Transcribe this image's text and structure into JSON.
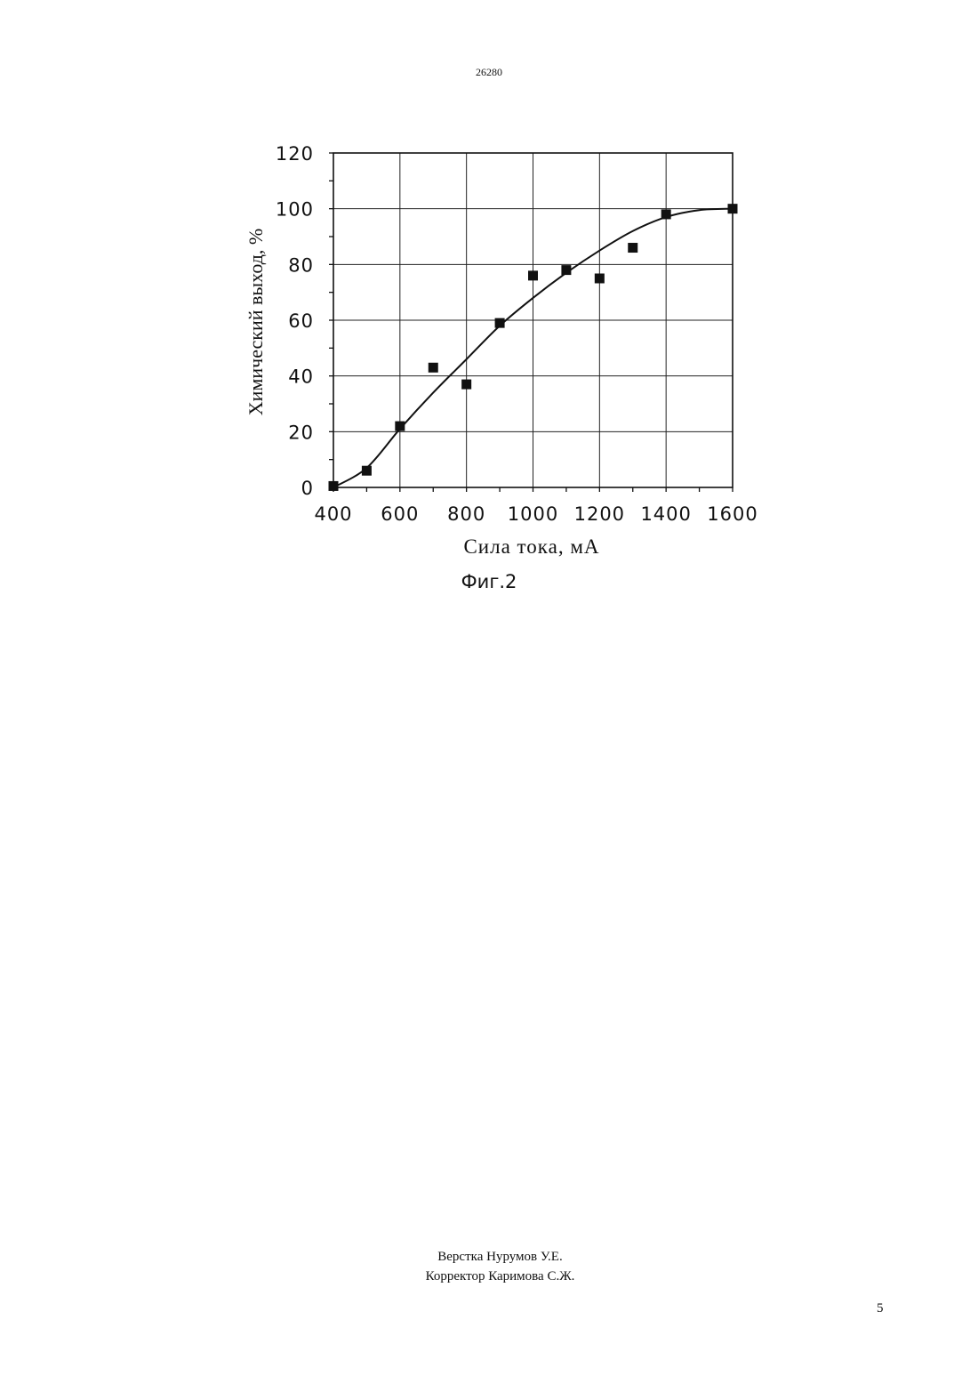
{
  "document": {
    "header_number": "26280",
    "figure_caption": "Фиг.2",
    "credits": [
      "Верстка Нурумов У.Е.",
      "Корректор Каримова С.Ж."
    ],
    "page_number": "5"
  },
  "chart_data": {
    "type": "scatter",
    "title": "",
    "xlabel": "Сила тока, мА",
    "ylabel": "Химический выход, %",
    "xlim": [
      400,
      1600
    ],
    "ylim": [
      0,
      120
    ],
    "x_ticks": [
      "400",
      "600",
      "800",
      "1000",
      "1200",
      "1400",
      "1600"
    ],
    "y_ticks": [
      "0",
      "20",
      "40",
      "60",
      "80",
      "100",
      "120"
    ],
    "grid": true,
    "legend": "none",
    "series": [
      {
        "type": "scatter",
        "marker": "square",
        "color": "#111111",
        "x": [
          400,
          500,
          600,
          700,
          800,
          900,
          1000,
          1100,
          1200,
          1300,
          1400,
          1600
        ],
        "y": [
          0.5,
          6,
          22,
          43,
          37,
          59,
          76,
          78,
          75,
          86,
          98,
          100
        ]
      },
      {
        "type": "line",
        "smooth": true,
        "color": "#111111",
        "x": [
          400,
          500,
          600,
          700,
          800,
          900,
          1000,
          1100,
          1200,
          1300,
          1400,
          1500,
          1600
        ],
        "y": [
          0,
          7,
          21,
          34,
          46,
          58,
          68,
          77,
          85,
          92,
          97,
          99.5,
          100
        ]
      }
    ]
  }
}
